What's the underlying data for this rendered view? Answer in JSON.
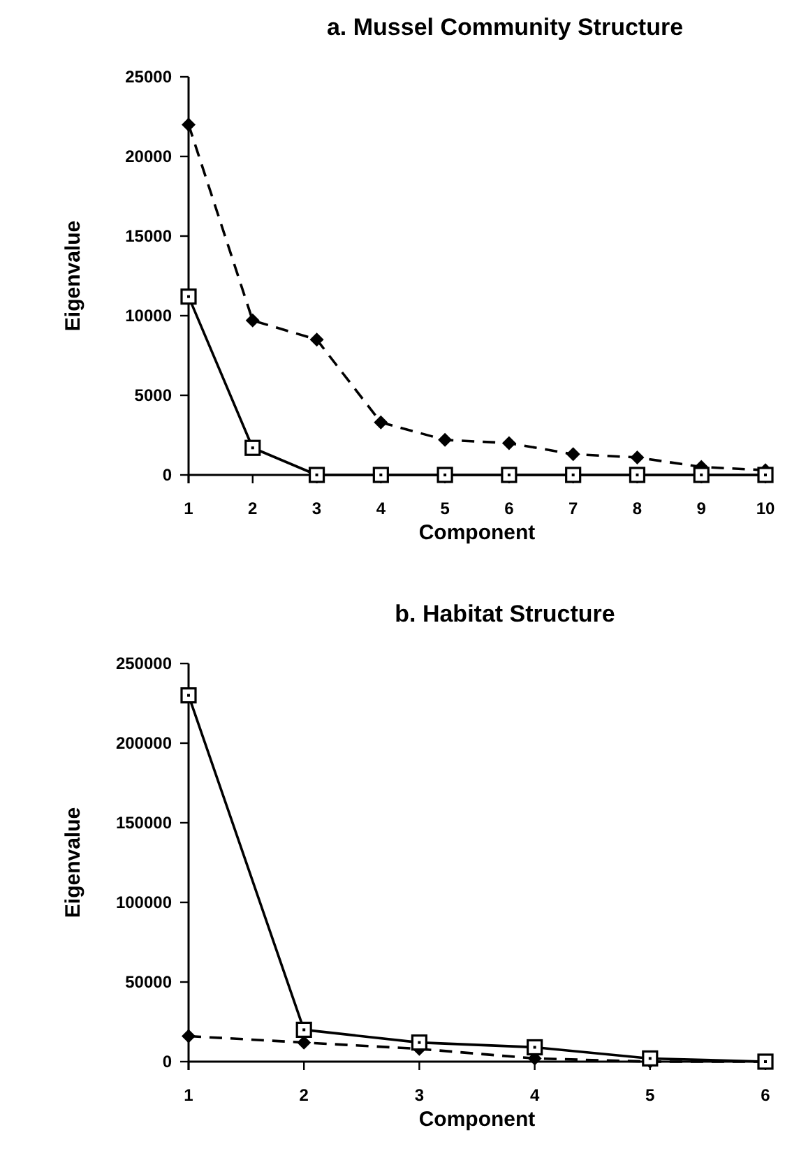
{
  "chart_data": [
    {
      "type": "line",
      "title": "a. Mussel Community Structure",
      "xlabel": "Component",
      "ylabel": "Eigenvalue",
      "x": [
        1,
        2,
        3,
        4,
        5,
        6,
        7,
        8,
        9,
        10
      ],
      "xlim": [
        1,
        10
      ],
      "xticks": [
        1,
        2,
        3,
        4,
        5,
        6,
        7,
        8,
        9,
        10
      ],
      "ylim": [
        0,
        25000
      ],
      "yticks": [
        0,
        5000,
        10000,
        15000,
        20000,
        25000
      ],
      "series": [
        {
          "color": "#000000",
          "marker": "diamond",
          "line_style": "dashed",
          "values": [
            22000,
            9700,
            8500,
            3300,
            2200,
            2000,
            1300,
            1100,
            500,
            300
          ]
        },
        {
          "color": "#000000",
          "marker": "square",
          "line_style": "solid",
          "values": [
            11200,
            1700,
            0,
            0,
            0,
            0,
            0,
            0,
            0,
            0
          ]
        }
      ]
    },
    {
      "type": "line",
      "title": "b. Habitat Structure",
      "xlabel": "Component",
      "ylabel": "Eigenvalue",
      "x": [
        1,
        2,
        3,
        4,
        5,
        6
      ],
      "xlim": [
        1,
        6
      ],
      "xticks": [
        1,
        2,
        3,
        4,
        5,
        6
      ],
      "ylim": [
        0,
        250000
      ],
      "yticks": [
        0,
        50000,
        100000,
        150000,
        200000,
        250000
      ],
      "series": [
        {
          "color": "#000000",
          "marker": "diamond",
          "line_style": "dashed",
          "values": [
            16000,
            12000,
            8000,
            2000,
            0,
            0
          ]
        },
        {
          "color": "#000000",
          "marker": "square",
          "line_style": "solid",
          "values": [
            230000,
            20000,
            12000,
            9000,
            2000,
            0
          ]
        }
      ]
    }
  ]
}
